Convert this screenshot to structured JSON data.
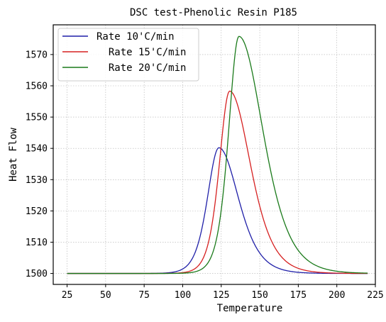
{
  "chart_data": {
    "type": "line",
    "title": "DSC test-Phenolic Resin P185",
    "xlabel": "Temperature",
    "ylabel": "Heat Flow",
    "xlim": [
      16,
      225
    ],
    "ylim": [
      1496.5,
      1579.5
    ],
    "xticks": [
      25,
      50,
      75,
      100,
      125,
      150,
      175,
      200,
      225
    ],
    "yticks": [
      1500,
      1510,
      1520,
      1530,
      1540,
      1550,
      1560,
      1570
    ],
    "grid": true,
    "legend_position": "top-left",
    "x_range": [
      25,
      220
    ],
    "baseline": 1500,
    "series": [
      {
        "name": "Rate 10'C/min",
        "color": "#1f1fa8",
        "peak_x": 123.5,
        "peak_y": 1540.2
      },
      {
        "name": "  Rate 15'C/min",
        "color": "#d62020",
        "peak_x": 130.5,
        "peak_y": 1558.3
      },
      {
        "name": "  Rate 20'C/min",
        "color": "#1a7a1a",
        "peak_x": 136.5,
        "peak_y": 1575.8
      }
    ]
  }
}
